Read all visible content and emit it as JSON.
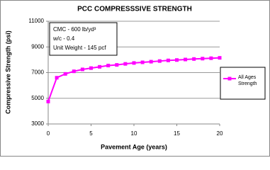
{
  "chart_data": {
    "type": "line",
    "title": "PCC COMPRESSSIVE STRENGTH",
    "x_label": "Pavement Age (years)",
    "y_label": "Compressive Strength (psi)",
    "annotations": [
      "CMC - 600 lb/yd³",
      "w/c - 0.4",
      "Unit Weight - 145 pcf"
    ],
    "x": [
      0,
      1,
      2,
      3,
      4,
      5,
      6,
      7,
      8,
      9,
      10,
      11,
      12,
      13,
      14,
      15,
      16,
      17,
      18,
      19,
      20
    ],
    "series": [
      {
        "name": "All Ages Strength",
        "color": "#ff00ff",
        "values": [
          4750,
          6600,
          6900,
          7100,
          7250,
          7350,
          7450,
          7550,
          7600,
          7680,
          7750,
          7800,
          7850,
          7900,
          7950,
          7980,
          8020,
          8060,
          8090,
          8120,
          8150
        ]
      }
    ],
    "xlim": [
      0,
      20
    ],
    "xticks": [
      0,
      5,
      10,
      15,
      20
    ],
    "ylim": [
      3000,
      11000
    ],
    "yticks": [
      3000,
      5000,
      7000,
      9000,
      11000
    ],
    "grid": true,
    "legend": "right"
  }
}
